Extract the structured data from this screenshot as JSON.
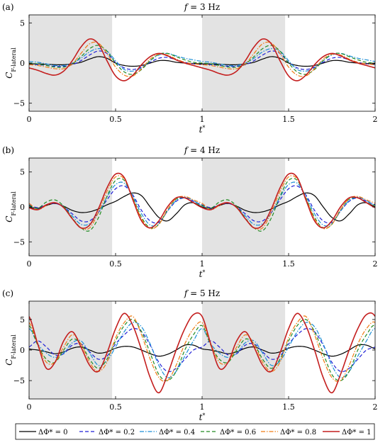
{
  "chart_data": [
    {
      "type": "line",
      "panel_label": "(a)",
      "title": "f = 3 Hz",
      "xlabel": "t*",
      "ylabel": "C_F-lateral",
      "xlim": [
        0,
        2
      ],
      "ylim": [
        -6,
        6
      ],
      "xticks": [
        "0",
        "0.5",
        "1",
        "1.5",
        "2"
      ],
      "yticks": [
        "-5",
        "0",
        "5"
      ],
      "shaded_intervals": [
        [
          0,
          0.48
        ],
        [
          1,
          1.48
        ]
      ],
      "x": [
        0,
        0.05,
        0.1,
        0.15,
        0.2,
        0.25,
        0.3,
        0.35,
        0.4,
        0.45,
        0.5,
        0.55,
        0.6,
        0.65,
        0.7,
        0.75,
        0.8,
        0.85,
        0.9,
        0.95,
        1.0
      ],
      "periodic": true,
      "series": [
        {
          "name": "ΔΦ* = 0",
          "values": [
            -0.1,
            -0.1,
            -0.15,
            -0.2,
            -0.2,
            -0.1,
            0.1,
            0.5,
            0.8,
            0.6,
            0.0,
            -0.3,
            -0.4,
            -0.3,
            0.0,
            0.3,
            0.3,
            0.1,
            0.0,
            -0.05,
            -0.1
          ]
        },
        {
          "name": "ΔΦ* = 0.2",
          "values": [
            -0.2,
            -0.2,
            -0.3,
            -0.4,
            -0.4,
            -0.2,
            0.3,
            1.0,
            1.5,
            1.2,
            0.1,
            -0.6,
            -0.8,
            -0.5,
            0.1,
            0.6,
            0.7,
            0.4,
            0.1,
            -0.1,
            -0.2
          ]
        },
        {
          "name": "ΔΦ* = 0.4",
          "values": [
            0.2,
            0.1,
            -0.1,
            -0.3,
            -0.3,
            0.0,
            0.6,
            1.4,
            1.8,
            1.5,
            0.3,
            -0.8,
            -1.0,
            -0.6,
            0.3,
            1.0,
            1.2,
            0.9,
            0.6,
            0.4,
            0.2
          ]
        },
        {
          "name": "ΔΦ* = 0.6",
          "values": [
            0.0,
            -0.1,
            -0.3,
            -0.5,
            -0.5,
            -0.1,
            0.8,
            1.8,
            2.2,
            1.5,
            0.0,
            -1.1,
            -1.4,
            -0.8,
            0.3,
            1.1,
            1.2,
            0.8,
            0.4,
            0.1,
            0.0
          ]
        },
        {
          "name": "ΔΦ* = 0.8",
          "values": [
            -0.2,
            -0.3,
            -0.5,
            -0.7,
            -0.7,
            -0.1,
            1.2,
            2.4,
            2.5,
            1.2,
            -0.5,
            -1.5,
            -1.6,
            -0.7,
            0.5,
            1.1,
            1.0,
            0.5,
            0.1,
            -0.1,
            -0.2
          ]
        },
        {
          "name": "ΔΦ* = 1",
          "values": [
            -0.6,
            -0.9,
            -1.3,
            -1.5,
            -1.0,
            0.3,
            2.0,
            3.0,
            2.4,
            0.3,
            -1.6,
            -2.2,
            -1.5,
            -0.2,
            0.8,
            1.2,
            0.9,
            0.4,
            0.0,
            -0.3,
            -0.6
          ]
        }
      ]
    },
    {
      "type": "line",
      "panel_label": "(b)",
      "title": "f = 4 Hz",
      "xlabel": "t*",
      "ylabel": "C_F-lateral",
      "xlim": [
        0,
        2
      ],
      "ylim": [
        -7,
        7
      ],
      "xticks": [
        "0",
        "0.5",
        "1",
        "1.5",
        "2"
      ],
      "yticks": [
        "-5",
        "0",
        "5"
      ],
      "shaded_intervals": [
        [
          0,
          0.48
        ],
        [
          1,
          1.48
        ]
      ],
      "x": [
        0,
        0.05,
        0.1,
        0.15,
        0.2,
        0.25,
        0.3,
        0.35,
        0.4,
        0.45,
        0.5,
        0.55,
        0.6,
        0.65,
        0.7,
        0.75,
        0.8,
        0.85,
        0.9,
        0.95,
        1.0
      ],
      "periodic": true,
      "series": [
        {
          "name": "ΔΦ* = 0",
          "values": [
            0.0,
            -0.2,
            0.2,
            0.5,
            0.1,
            -0.5,
            -0.8,
            -0.7,
            -0.3,
            0.3,
            0.8,
            1.5,
            2.0,
            1.6,
            0.0,
            -1.5,
            -2.0,
            -1.0,
            0.3,
            0.6,
            0.0
          ]
        },
        {
          "name": "ΔΦ* = 0.2",
          "values": [
            0.3,
            -0.1,
            0.3,
            0.5,
            0.0,
            -1.0,
            -2.0,
            -2.0,
            -0.8,
            1.0,
            2.6,
            3.0,
            1.7,
            -0.5,
            -2.0,
            -2.2,
            -0.6,
            0.8,
            1.3,
            0.8,
            0.3
          ]
        },
        {
          "name": "ΔΦ* = 0.4",
          "values": [
            0.2,
            -0.3,
            0.3,
            0.6,
            0.0,
            -1.3,
            -2.5,
            -2.4,
            -0.9,
            1.4,
            3.2,
            3.4,
            1.5,
            -1.0,
            -2.6,
            -2.4,
            -0.6,
            0.9,
            1.4,
            0.9,
            0.2
          ]
        },
        {
          "name": "ΔΦ* = 0.6",
          "values": [
            0.2,
            -0.2,
            0.7,
            1.0,
            0.1,
            -1.6,
            -3.0,
            -3.4,
            -1.6,
            1.5,
            3.8,
            3.8,
            1.3,
            -1.5,
            -3.0,
            -2.5,
            -0.4,
            1.1,
            1.3,
            0.6,
            0.2
          ]
        },
        {
          "name": "ΔΦ* = 0.8",
          "values": [
            0.5,
            -0.4,
            0.2,
            0.6,
            -0.1,
            -1.7,
            -3.0,
            -3.0,
            -0.8,
            2.2,
            4.3,
            4.0,
            1.2,
            -1.7,
            -3.1,
            -2.5,
            -0.4,
            1.2,
            1.5,
            1.0,
            0.5
          ]
        },
        {
          "name": "ΔΦ* = 1",
          "values": [
            -0.1,
            -0.4,
            0.3,
            0.6,
            -0.1,
            -1.7,
            -3.0,
            -2.6,
            -0.3,
            2.7,
            4.7,
            4.2,
            1.0,
            -2.0,
            -3.0,
            -2.0,
            0.0,
            1.3,
            1.3,
            0.6,
            -0.1
          ]
        }
      ]
    },
    {
      "type": "line",
      "panel_label": "(c)",
      "title": "f = 5 Hz",
      "xlabel": "t*",
      "ylabel": "C_F-lateral",
      "xlim": [
        0,
        2
      ],
      "ylim": [
        -8,
        8
      ],
      "xticks": [
        "0",
        "0.5",
        "1",
        "1.5",
        "2"
      ],
      "yticks": [
        "-5",
        "0",
        "5"
      ],
      "shaded_intervals": [
        [
          0,
          0.48
        ],
        [
          1,
          1.48
        ]
      ],
      "x": [
        0,
        0.05,
        0.1,
        0.15,
        0.2,
        0.25,
        0.3,
        0.35,
        0.4,
        0.45,
        0.5,
        0.55,
        0.6,
        0.65,
        0.7,
        0.75,
        0.8,
        0.85,
        0.9,
        0.95,
        1.0
      ],
      "periodic": true,
      "series": [
        {
          "name": "ΔΦ* = 0",
          "values": [
            0.2,
            0.0,
            -0.3,
            -0.6,
            -0.3,
            0.3,
            0.5,
            0.0,
            -0.5,
            -0.3,
            0.3,
            0.6,
            0.5,
            0.0,
            -0.6,
            -1.0,
            -0.7,
            0.0,
            0.8,
            0.8,
            0.2
          ]
        },
        {
          "name": "ΔΦ* = 0.2",
          "values": [
            0.5,
            1.5,
            0.5,
            -0.8,
            -0.6,
            0.8,
            1.0,
            -0.3,
            -1.5,
            -1.0,
            1.0,
            2.5,
            3.5,
            3.0,
            0.8,
            -2.0,
            -3.5,
            -3.0,
            -1.5,
            0.0,
            0.5
          ]
        },
        {
          "name": "ΔΦ* = 0.4",
          "values": [
            3.5,
            1.0,
            -0.5,
            -1.2,
            -0.5,
            1.2,
            1.5,
            -0.5,
            -2.5,
            -1.8,
            0.5,
            3.0,
            4.5,
            3.8,
            1.0,
            -2.5,
            -4.5,
            -3.5,
            -1.0,
            1.5,
            3.5
          ]
        },
        {
          "name": "ΔΦ* = 0.6",
          "values": [
            4.0,
            0.8,
            -1.5,
            -2.0,
            0.0,
            1.8,
            1.0,
            -1.5,
            -3.0,
            -1.5,
            1.5,
            4.0,
            5.0,
            3.0,
            -0.5,
            -4.0,
            -5.0,
            -3.5,
            0.0,
            2.5,
            4.0
          ]
        },
        {
          "name": "ΔΦ* = 0.8",
          "values": [
            4.5,
            1.0,
            -2.0,
            -2.0,
            0.5,
            2.5,
            1.0,
            -2.0,
            -3.5,
            -2.0,
            2.0,
            4.5,
            5.5,
            2.5,
            -1.5,
            -4.5,
            -5.0,
            -2.5,
            1.0,
            3.5,
            4.5
          ]
        },
        {
          "name": "ΔΦ* = 1",
          "values": [
            5.5,
            1.0,
            -3.0,
            -2.0,
            1.5,
            3.0,
            0.5,
            -2.5,
            -3.5,
            -0.5,
            3.5,
            6.0,
            4.0,
            0.0,
            -4.5,
            -7.0,
            -4.0,
            0.0,
            3.5,
            5.8,
            5.5
          ]
        }
      ]
    }
  ],
  "legend": {
    "items": [
      {
        "label": "ΔΦ* = 0",
        "color": "#000000",
        "dash": "solid"
      },
      {
        "label": "ΔΦ* = 0.2",
        "color": "#1f1fd6",
        "dash": "dashed"
      },
      {
        "label": "ΔΦ* = 0.4",
        "color": "#1c8fd6",
        "dash": "dashdot"
      },
      {
        "label": "ΔΦ* = 0.6",
        "color": "#228b22",
        "dash": "dashed"
      },
      {
        "label": "ΔΦ* = 0.8",
        "color": "#f07c14",
        "dash": "dashdot"
      },
      {
        "label": "ΔΦ* = 1",
        "color": "#c41e1e",
        "dash": "solid"
      }
    ]
  },
  "colors": {
    "shade": "#e3e3e3"
  }
}
